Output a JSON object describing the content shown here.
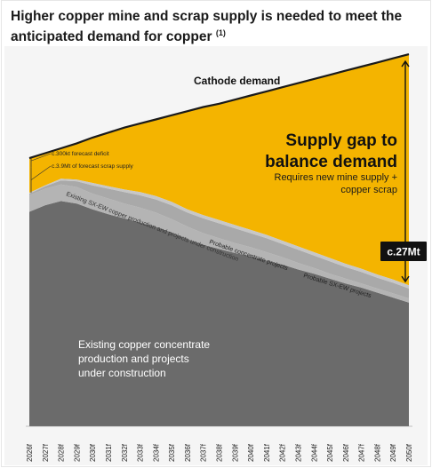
{
  "title": "Higher copper mine and scrap supply is needed to meet the anticipated demand for copper",
  "title_note": "(1)",
  "colors": {
    "panel_bg": "#f5f5f5",
    "gap_fill": "#f4b400",
    "demand_line": "#1a1a1a",
    "probable_sxew": "#c7c7c7",
    "probable_conc": "#a9a9a9",
    "existing_sxew": "#b4b4b4",
    "existing_conc": "#6b6b6b"
  },
  "chart_data": {
    "type": "area",
    "categories": [
      "2026f",
      "2027f",
      "2028f",
      "2029f",
      "2030f",
      "2031f",
      "2032f",
      "2033f",
      "2034f",
      "2035f",
      "2036f",
      "2037f",
      "2038f",
      "2039f",
      "2040f",
      "2041f",
      "2042f",
      "2043f",
      "2044f",
      "2045f",
      "2046f",
      "2047f",
      "2048f",
      "2049f",
      "2050f"
    ],
    "units": "Mt (relative; scale not printed)",
    "ylim": [
      0,
      45
    ],
    "series": [
      {
        "name": "Existing copper concentrate production and projects under construction",
        "values": [
          26.0,
          26.8,
          27.3,
          27.0,
          26.3,
          25.7,
          25.2,
          24.7,
          24.2,
          23.5,
          22.7,
          22.0,
          21.5,
          21.0,
          20.6,
          20.1,
          19.6,
          19.0,
          18.5,
          17.9,
          17.3,
          16.8,
          16.2,
          15.6,
          15.0
        ]
      },
      {
        "name": "Existing SX-EW copper production and projects under construction",
        "values": [
          2.0,
          2.0,
          2.0,
          2.0,
          1.9,
          1.9,
          1.8,
          1.8,
          1.7,
          1.6,
          1.5,
          1.4,
          1.3,
          1.2,
          1.1,
          1.0,
          0.9,
          0.8,
          0.7,
          0.6,
          0.6,
          0.5,
          0.5,
          0.5,
          0.5
        ]
      },
      {
        "name": "Probable concentrate projects",
        "values": [
          0.2,
          0.3,
          0.5,
          0.7,
          1.0,
          1.2,
          1.4,
          1.5,
          1.6,
          1.7,
          1.7,
          1.8,
          1.8,
          1.8,
          1.7,
          1.7,
          1.6,
          1.6,
          1.5,
          1.5,
          1.4,
          1.4,
          1.3,
          1.3,
          1.2
        ]
      },
      {
        "name": "Probable SX-EW projects",
        "values": [
          0.1,
          0.1,
          0.2,
          0.2,
          0.3,
          0.3,
          0.3,
          0.4,
          0.4,
          0.4,
          0.4,
          0.4,
          0.4,
          0.4,
          0.4,
          0.4,
          0.4,
          0.4,
          0.4,
          0.4,
          0.4,
          0.4,
          0.4,
          0.4,
          0.4
        ]
      },
      {
        "name": "Cathode demand",
        "values": [
          32.5,
          33.1,
          33.7,
          34.3,
          35.0,
          35.6,
          36.2,
          36.7,
          37.2,
          37.7,
          38.2,
          38.7,
          39.1,
          39.6,
          40.1,
          40.6,
          41.1,
          41.6,
          42.1,
          42.6,
          43.1,
          43.6,
          44.1,
          44.6,
          45.1
        ]
      }
    ],
    "annotations": {
      "forecast_deficit": "c.300kt forecast deficit",
      "scrap_supply": "c.3.9Mt of forecast scrap supply",
      "gap_heading_line1": "Supply gap to",
      "gap_heading_line2": "balance demand",
      "gap_sub_line1": "Requires new mine supply +",
      "gap_sub_line2": "copper scrap",
      "gap_size": "c.27Mt",
      "demand_label": "Cathode demand",
      "existing_conc_line1": "Existing copper concentrate",
      "existing_conc_line2": "production and projects",
      "existing_conc_line3": "under construction",
      "existing_sxew_label": "Existing SX-EW copper production and projects under construction",
      "probable_conc_label": "Probable concentrate projects",
      "probable_sxew_label": "Probable SX-EW projects"
    }
  }
}
